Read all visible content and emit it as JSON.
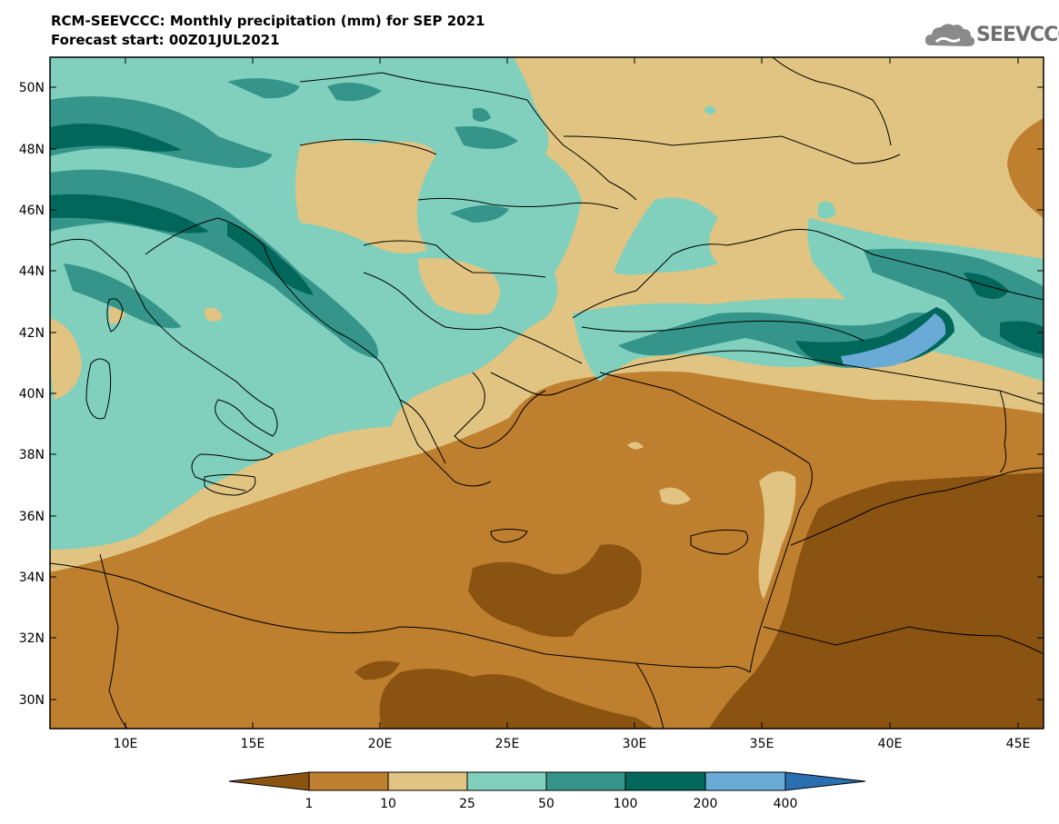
{
  "header": {
    "title_line1": "RCM-SEEVCCC: Monthly precipitation (mm) for SEP 2021",
    "title_line2": "Forecast start: 00Z01JUL2021",
    "logo_text": "SEEVCCC"
  },
  "axes": {
    "lat_labels": [
      "50N",
      "48N",
      "46N",
      "44N",
      "42N",
      "40N",
      "38N",
      "36N",
      "34N",
      "32N",
      "30N"
    ],
    "lon_labels": [
      "10E",
      "15E",
      "20E",
      "25E",
      "30E",
      "35E",
      "40E",
      "45E"
    ]
  },
  "colorbar": {
    "tick_labels": [
      "1",
      "10",
      "25",
      "50",
      "100",
      "200",
      "400"
    ],
    "colors": [
      "#8b5311",
      "#be7f2f",
      "#e1c481",
      "#80d0bd",
      "#35958a",
      "#01675b",
      "#6aaad6",
      "#2a6fb0"
    ]
  },
  "palette": {
    "lt1": "#8b5311",
    "1_10": "#be7f2f",
    "10_25": "#e1c481",
    "25_50": "#80d0bd",
    "50_100": "#35958a",
    "100_200": "#01675b",
    "200_400": "#6aaad6"
  }
}
